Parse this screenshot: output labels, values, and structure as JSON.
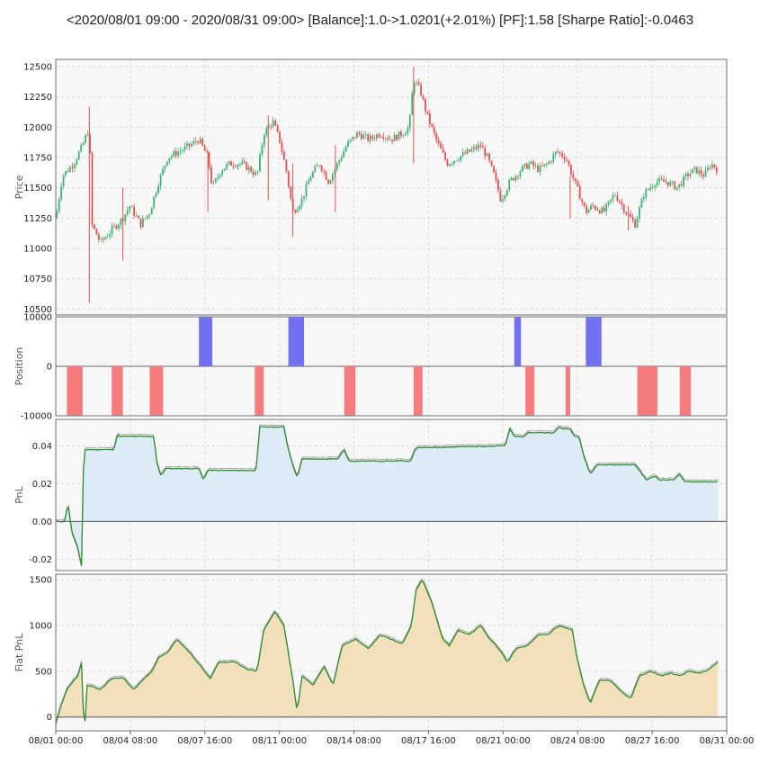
{
  "title": "<2020/08/01 09:00 - 2020/08/31 09:00>  [Balance]:1.0->1.0201(+2.01%)  [PF]:1.58  [Sharpe Ratio]:-0.0463",
  "colors": {
    "up": "#3cb371",
    "down": "#e8504f",
    "long": "#7070f0",
    "short": "#f47c7c",
    "pnl_line": "#2e8b2e",
    "pnl_fill": "#dcebf5",
    "fiat_fill": "#f2e0bd",
    "grid": "#d9d9d9",
    "panel_bg": "#f7f7f7"
  },
  "chart_data": [
    {
      "type": "candlestick",
      "ylabel": "Price",
      "ylim": [
        10450,
        12560
      ],
      "yticks": [
        10500,
        10750,
        11000,
        11250,
        11500,
        11750,
        12000,
        12250,
        12500
      ],
      "close_path": [
        [
          0,
          11250
        ],
        [
          0.3,
          11600
        ],
        [
          0.8,
          11700
        ],
        [
          1.2,
          11850
        ],
        [
          1.5,
          12000
        ],
        [
          1.6,
          11200
        ],
        [
          2.0,
          11050
        ],
        [
          2.5,
          11150
        ],
        [
          3.0,
          11250
        ],
        [
          3.3,
          11350
        ],
        [
          3.8,
          11200
        ],
        [
          4.2,
          11300
        ],
        [
          4.6,
          11550
        ],
        [
          5.0,
          11750
        ],
        [
          5.5,
          11800
        ],
        [
          6.0,
          11850
        ],
        [
          6.4,
          11900
        ],
        [
          6.8,
          11750
        ],
        [
          7.0,
          11500
        ],
        [
          7.4,
          11650
        ],
        [
          7.8,
          11700
        ],
        [
          8.3,
          11700
        ],
        [
          8.7,
          11650
        ],
        [
          9.0,
          11600
        ],
        [
          9.3,
          11950
        ],
        [
          9.7,
          12050
        ],
        [
          10.0,
          11900
        ],
        [
          10.3,
          11650
        ],
        [
          10.6,
          11300
        ],
        [
          11.0,
          11400
        ],
        [
          11.4,
          11600
        ],
        [
          11.8,
          11700
        ],
        [
          12.2,
          11550
        ],
        [
          12.6,
          11700
        ],
        [
          13.0,
          11850
        ],
        [
          13.5,
          11950
        ],
        [
          14.0,
          11900
        ],
        [
          14.5,
          11950
        ],
        [
          15.0,
          11900
        ],
        [
          15.5,
          11950
        ],
        [
          15.8,
          12000
        ],
        [
          16.0,
          12400
        ],
        [
          16.3,
          12300
        ],
        [
          16.6,
          12100
        ],
        [
          17.0,
          11900
        ],
        [
          17.5,
          11700
        ],
        [
          18.0,
          11750
        ],
        [
          18.5,
          11800
        ],
        [
          19.0,
          11850
        ],
        [
          19.3,
          11750
        ],
        [
          19.6,
          11600
        ],
        [
          19.9,
          11400
        ],
        [
          20.3,
          11550
        ],
        [
          20.8,
          11650
        ],
        [
          21.2,
          11700
        ],
        [
          21.6,
          11650
        ],
        [
          22.0,
          11700
        ],
        [
          22.4,
          11800
        ],
        [
          22.8,
          11750
        ],
        [
          23.1,
          11600
        ],
        [
          23.4,
          11450
        ],
        [
          23.7,
          11300
        ],
        [
          24.0,
          11350
        ],
        [
          24.5,
          11300
        ],
        [
          25.0,
          11450
        ],
        [
          25.5,
          11300
        ],
        [
          25.9,
          11200
        ],
        [
          26.3,
          11450
        ],
        [
          26.8,
          11550
        ],
        [
          27.3,
          11550
        ],
        [
          27.8,
          11500
        ],
        [
          28.2,
          11600
        ],
        [
          28.6,
          11650
        ],
        [
          29.0,
          11600
        ],
        [
          29.3,
          11700
        ],
        [
          29.6,
          11650
        ]
      ],
      "candle_range": [
        [
          1.5,
          10550,
          12170
        ],
        [
          3.0,
          10900,
          11500
        ],
        [
          6.8,
          11300,
          11800
        ],
        [
          9.5,
          11400,
          12100
        ],
        [
          10.6,
          11100,
          11700
        ],
        [
          12.5,
          11300,
          11850
        ],
        [
          16.0,
          11700,
          12500
        ],
        [
          23.0,
          11250,
          11600
        ],
        [
          25.6,
          11150,
          11350
        ]
      ]
    },
    {
      "type": "area",
      "ylabel": "Position",
      "ylim": [
        -10000,
        10000
      ],
      "yticks": [
        -10000,
        0,
        10000
      ],
      "trades": [
        [
          0.5,
          1.2,
          -1
        ],
        [
          2.5,
          3.0,
          -1
        ],
        [
          4.2,
          4.8,
          -1
        ],
        [
          6.4,
          7.0,
          1
        ],
        [
          8.9,
          9.3,
          -1
        ],
        [
          10.4,
          11.1,
          1
        ],
        [
          12.9,
          13.4,
          -1
        ],
        [
          16.0,
          16.4,
          -1
        ],
        [
          20.5,
          20.8,
          1
        ],
        [
          21.0,
          21.4,
          -1
        ],
        [
          22.8,
          23.0,
          -1
        ],
        [
          23.7,
          24.4,
          1
        ],
        [
          26.0,
          26.9,
          -1
        ],
        [
          27.9,
          28.4,
          -1
        ]
      ]
    },
    {
      "type": "line",
      "ylabel": "PnL",
      "ylim": [
        -0.026,
        0.054
      ],
      "yticks": [
        -0.02,
        0.0,
        0.02,
        0.04
      ],
      "points": [
        [
          0,
          0
        ],
        [
          0.4,
          0.0
        ],
        [
          0.55,
          0.01
        ],
        [
          0.7,
          -0.005
        ],
        [
          0.85,
          -0.01
        ],
        [
          1.0,
          -0.015
        ],
        [
          1.15,
          -0.024
        ],
        [
          1.2,
          0.005
        ],
        [
          1.25,
          0.038
        ],
        [
          2.6,
          0.038
        ],
        [
          2.75,
          0.046
        ],
        [
          2.85,
          0.045
        ],
        [
          4.4,
          0.045
        ],
        [
          4.5,
          0.032
        ],
        [
          4.7,
          0.024
        ],
        [
          4.9,
          0.028
        ],
        [
          6.4,
          0.028
        ],
        [
          6.6,
          0.022
        ],
        [
          6.8,
          0.027
        ],
        [
          8.9,
          0.027
        ],
        [
          9.0,
          0.03
        ],
        [
          9.1,
          0.05
        ],
        [
          10.2,
          0.05
        ],
        [
          10.4,
          0.038
        ],
        [
          10.6,
          0.03
        ],
        [
          10.8,
          0.023
        ],
        [
          11.0,
          0.033
        ],
        [
          12.6,
          0.033
        ],
        [
          12.9,
          0.038
        ],
        [
          13.1,
          0.032
        ],
        [
          15.9,
          0.032
        ],
        [
          16.0,
          0.037
        ],
        [
          16.2,
          0.039
        ],
        [
          19.9,
          0.04
        ],
        [
          20.1,
          0.04
        ],
        [
          20.3,
          0.049
        ],
        [
          20.5,
          0.045
        ],
        [
          21.0,
          0.045
        ],
        [
          21.1,
          0.047
        ],
        [
          22.3,
          0.047
        ],
        [
          22.5,
          0.05
        ],
        [
          22.7,
          0.049
        ],
        [
          23.0,
          0.049
        ],
        [
          23.2,
          0.045
        ],
        [
          23.4,
          0.045
        ],
        [
          23.6,
          0.035
        ],
        [
          23.9,
          0.025
        ],
        [
          24.2,
          0.03
        ],
        [
          25.9,
          0.03
        ],
        [
          26.1,
          0.027
        ],
        [
          26.4,
          0.022
        ],
        [
          26.8,
          0.024
        ],
        [
          27.0,
          0.022
        ],
        [
          27.6,
          0.022
        ],
        [
          27.9,
          0.025
        ],
        [
          28.1,
          0.021
        ],
        [
          29.6,
          0.021
        ]
      ]
    },
    {
      "type": "line",
      "ylabel": "Fiat PnL",
      "ylim": [
        -150,
        1560
      ],
      "yticks": [
        0,
        500,
        1000,
        1500
      ],
      "points": [
        [
          0,
          -80
        ],
        [
          0.2,
          100
        ],
        [
          0.5,
          300
        ],
        [
          0.8,
          400
        ],
        [
          1.0,
          450
        ],
        [
          1.15,
          600
        ],
        [
          1.2,
          150
        ],
        [
          1.3,
          -120
        ],
        [
          1.4,
          350
        ],
        [
          2.0,
          300
        ],
        [
          2.5,
          420
        ],
        [
          3.0,
          430
        ],
        [
          3.5,
          300
        ],
        [
          3.8,
          380
        ],
        [
          4.3,
          500
        ],
        [
          4.6,
          650
        ],
        [
          5.0,
          700
        ],
        [
          5.4,
          850
        ],
        [
          6.0,
          700
        ],
        [
          6.5,
          550
        ],
        [
          6.9,
          420
        ],
        [
          7.3,
          600
        ],
        [
          8.0,
          600
        ],
        [
          8.6,
          520
        ],
        [
          9.0,
          500
        ],
        [
          9.3,
          950
        ],
        [
          9.8,
          1150
        ],
        [
          10.2,
          1000
        ],
        [
          10.4,
          700
        ],
        [
          10.6,
          400
        ],
        [
          10.8,
          50
        ],
        [
          11.0,
          450
        ],
        [
          11.5,
          350
        ],
        [
          12.0,
          550
        ],
        [
          12.4,
          350
        ],
        [
          12.8,
          780
        ],
        [
          13.4,
          850
        ],
        [
          14.0,
          750
        ],
        [
          14.5,
          900
        ],
        [
          15.0,
          850
        ],
        [
          15.5,
          800
        ],
        [
          15.9,
          1000
        ],
        [
          16.1,
          1380
        ],
        [
          16.4,
          1500
        ],
        [
          16.8,
          1260
        ],
        [
          17.3,
          850
        ],
        [
          17.6,
          780
        ],
        [
          18.0,
          950
        ],
        [
          18.5,
          900
        ],
        [
          19.0,
          1000
        ],
        [
          19.4,
          850
        ],
        [
          19.8,
          750
        ],
        [
          20.2,
          600
        ],
        [
          20.6,
          750
        ],
        [
          21.1,
          780
        ],
        [
          21.6,
          900
        ],
        [
          22.0,
          900
        ],
        [
          22.5,
          1000
        ],
        [
          23.1,
          950
        ],
        [
          23.3,
          650
        ],
        [
          23.6,
          350
        ],
        [
          23.9,
          150
        ],
        [
          24.3,
          400
        ],
        [
          24.8,
          400
        ],
        [
          25.2,
          300
        ],
        [
          25.7,
          200
        ],
        [
          26.1,
          450
        ],
        [
          26.6,
          500
        ],
        [
          27.1,
          450
        ],
        [
          27.5,
          480
        ],
        [
          27.9,
          450
        ],
        [
          28.3,
          500
        ],
        [
          28.8,
          480
        ],
        [
          29.2,
          520
        ],
        [
          29.6,
          600
        ]
      ]
    }
  ],
  "xaxis": {
    "ticks": [
      "08/01 00:00",
      "08/04 08:00",
      "08/07 16:00",
      "08/11 00:00",
      "08/14 08:00",
      "08/17 16:00",
      "08/21 00:00",
      "08/24 08:00",
      "08/27 16:00",
      "08/31 00:00"
    ],
    "tick_positions_days": [
      0,
      3.333,
      6.667,
      10,
      13.333,
      16.667,
      20,
      23.333,
      26.667,
      30
    ]
  }
}
